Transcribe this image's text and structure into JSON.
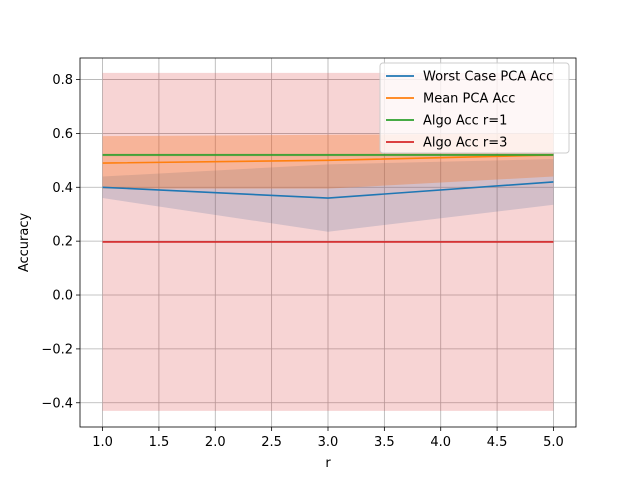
{
  "chart_data": {
    "type": "line",
    "title": "",
    "xlabel": "r",
    "ylabel": "Accuracy",
    "xlim": [
      0.8,
      5.2
    ],
    "ylim": [
      -0.49,
      0.88
    ],
    "xticks": [
      1.0,
      1.5,
      2.0,
      2.5,
      3.0,
      3.5,
      4.0,
      4.5,
      5.0
    ],
    "yticks": [
      -0.4,
      -0.2,
      0.0,
      0.2,
      0.4,
      0.6,
      0.8
    ],
    "xtick_labels": [
      "1.0",
      "1.5",
      "2.0",
      "2.5",
      "3.0",
      "3.5",
      "4.0",
      "4.5",
      "5.0"
    ],
    "ytick_labels": [
      "−0.4",
      "−0.2",
      "0.0",
      "0.2",
      "0.4",
      "0.6",
      "0.8"
    ],
    "grid": true,
    "legend_position": "top-right",
    "series": [
      {
        "name": "Worst Case PCA Acc",
        "color": "#1f77b4",
        "x": [
          1,
          3,
          5
        ],
        "y": [
          0.4,
          0.36,
          0.42
        ],
        "band": {
          "lower": [
            0.36,
            0.235,
            0.335
          ],
          "upper": [
            0.44,
            0.485,
            0.505
          ],
          "color": "#1f77b4",
          "opacity": 0.2
        }
      },
      {
        "name": "Mean PCA Acc",
        "color": "#ff7f0e",
        "x": [
          1,
          3,
          5
        ],
        "y": [
          0.49,
          0.5,
          0.52
        ],
        "band": {
          "lower": [
            0.395,
            0.395,
            0.44
          ],
          "upper": [
            0.59,
            0.595,
            0.6
          ],
          "color": "#ff7f0e",
          "opacity": 0.3
        }
      },
      {
        "name": "Algo Acc r=1",
        "color": "#2ca02c",
        "x": [
          1,
          5
        ],
        "y": [
          0.52,
          0.52
        ],
        "band": {
          "lower": [
            0.515,
            0.515
          ],
          "upper": [
            0.525,
            0.525
          ],
          "color": "#2ca02c",
          "opacity": 0.2
        }
      },
      {
        "name": "Algo Acc r=3",
        "color": "#d62728",
        "x": [
          1,
          5
        ],
        "y": [
          0.197,
          0.197
        ],
        "band": {
          "lower": [
            -0.43,
            -0.43
          ],
          "upper": [
            0.825,
            0.825
          ],
          "color": "#d62728",
          "opacity": 0.2
        }
      }
    ]
  }
}
